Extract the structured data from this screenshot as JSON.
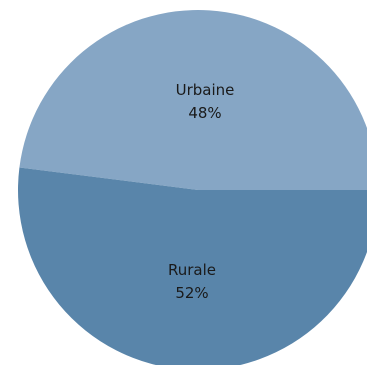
{
  "chart_data": {
    "type": "pie",
    "slices": [
      {
        "label": "Urbaine",
        "value": 48,
        "value_label": "48%",
        "color": "#86a6c5"
      },
      {
        "label": "Rurale",
        "value": 52,
        "value_label": "52%",
        "color": "#5985aa"
      }
    ]
  }
}
